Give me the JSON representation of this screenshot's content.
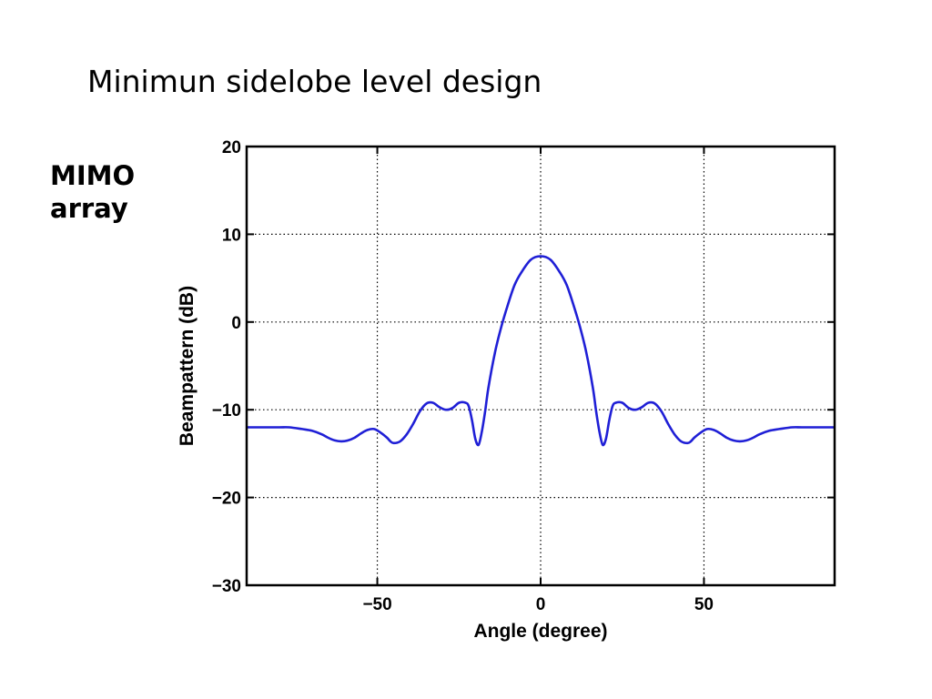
{
  "slide": {
    "title": "Minimun sidelobe level design",
    "side_label_lines": [
      "MIMO",
      "array"
    ]
  },
  "chart_data": {
    "type": "line",
    "xlabel": "Angle (degree)",
    "ylabel": "Beampattern (dB)",
    "xlim": [
      -90,
      90
    ],
    "ylim": [
      -30,
      20
    ],
    "xticks": [
      -50,
      0,
      50
    ],
    "yticks": [
      20,
      10,
      0,
      -10,
      -20,
      -30
    ],
    "xtick_labels": [
      "−50",
      "0",
      "50"
    ],
    "ytick_labels": [
      "20",
      "10",
      "0",
      "−10",
      "−20",
      "−30"
    ],
    "grid": true,
    "line_color": "#1f1fd6",
    "series": [
      {
        "x": [
          0,
          3,
          6,
          8,
          10,
          12,
          14,
          16,
          17,
          18,
          19,
          20,
          21,
          22,
          23,
          25,
          27,
          29,
          31,
          33,
          35,
          37,
          39,
          41,
          43,
          45,
          46,
          47,
          49,
          51,
          53,
          55,
          57,
          59,
          61,
          63,
          65,
          67,
          70,
          73,
          77,
          80,
          85,
          90
        ],
        "y": [
          7.5,
          7.1,
          5.6,
          4.2,
          2.0,
          -0.5,
          -3.5,
          -7.5,
          -10.2,
          -12.5,
          -14.0,
          -13.3,
          -11.2,
          -9.6,
          -9.2,
          -9.2,
          -9.8,
          -10.0,
          -9.7,
          -9.2,
          -9.3,
          -10.2,
          -11.6,
          -12.8,
          -13.6,
          -13.8,
          -13.6,
          -13.2,
          -12.6,
          -12.2,
          -12.3,
          -12.7,
          -13.2,
          -13.5,
          -13.6,
          -13.5,
          -13.2,
          -12.8,
          -12.4,
          -12.2,
          -12.0,
          -12.0,
          -12.0,
          -12.0
        ]
      }
    ]
  }
}
